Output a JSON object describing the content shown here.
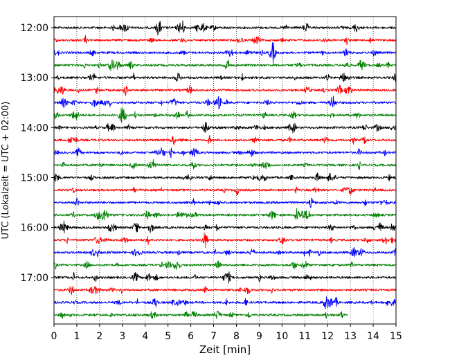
{
  "chart_data": {
    "type": "line",
    "title": "",
    "xlabel": "Zeit  [min]",
    "ylabel": "UTC (Lokalzeit = UTC + 02:00)",
    "xlim": [
      0,
      15
    ],
    "x_ticks": [
      "0",
      "1",
      "2",
      "3",
      "4",
      "5",
      "6",
      "7",
      "8",
      "9",
      "10",
      "11",
      "12",
      "13",
      "14",
      "15"
    ],
    "y_ticks": [
      "12:00",
      "13:00",
      "14:00",
      "15:00",
      "16:00",
      "17:00"
    ],
    "grid": "vertical dotted lines at each minute",
    "colors": [
      "#000000",
      "#ff0000",
      "#0000ff",
      "#008000"
    ],
    "series": [
      {
        "start": "12:00",
        "end_min": 15,
        "color": "#000000"
      },
      {
        "start": "12:15",
        "end_min": 15,
        "color": "#ff0000"
      },
      {
        "start": "12:30",
        "end_min": 15,
        "color": "#0000ff"
      },
      {
        "start": "12:45",
        "end_min": 15,
        "color": "#008000"
      },
      {
        "start": "13:00",
        "end_min": 15,
        "color": "#000000"
      },
      {
        "start": "13:15",
        "end_min": 15,
        "color": "#ff0000"
      },
      {
        "start": "13:30",
        "end_min": 15,
        "color": "#0000ff"
      },
      {
        "start": "13:45",
        "end_min": 15,
        "color": "#008000"
      },
      {
        "start": "14:00",
        "end_min": 15,
        "color": "#000000"
      },
      {
        "start": "14:15",
        "end_min": 15,
        "color": "#ff0000"
      },
      {
        "start": "14:30",
        "end_min": 15,
        "color": "#0000ff"
      },
      {
        "start": "14:45",
        "end_min": 15,
        "color": "#008000"
      },
      {
        "start": "15:00",
        "end_min": 15,
        "color": "#000000"
      },
      {
        "start": "15:15",
        "end_min": 15,
        "color": "#ff0000"
      },
      {
        "start": "15:30",
        "end_min": 15,
        "color": "#0000ff"
      },
      {
        "start": "15:45",
        "end_min": 15,
        "color": "#008000"
      },
      {
        "start": "16:00",
        "end_min": 15,
        "color": "#000000"
      },
      {
        "start": "16:15",
        "end_min": 15,
        "color": "#ff0000"
      },
      {
        "start": "16:30",
        "end_min": 15,
        "color": "#0000ff"
      },
      {
        "start": "16:45",
        "end_min": 15,
        "color": "#008000"
      },
      {
        "start": "17:00",
        "end_min": 15,
        "color": "#000000"
      },
      {
        "start": "17:15",
        "end_min": 15,
        "color": "#ff0000"
      },
      {
        "start": "17:30",
        "end_min": 15,
        "color": "#0000ff"
      },
      {
        "start": "17:45",
        "end_min": 12.9,
        "color": "#008000"
      }
    ]
  }
}
